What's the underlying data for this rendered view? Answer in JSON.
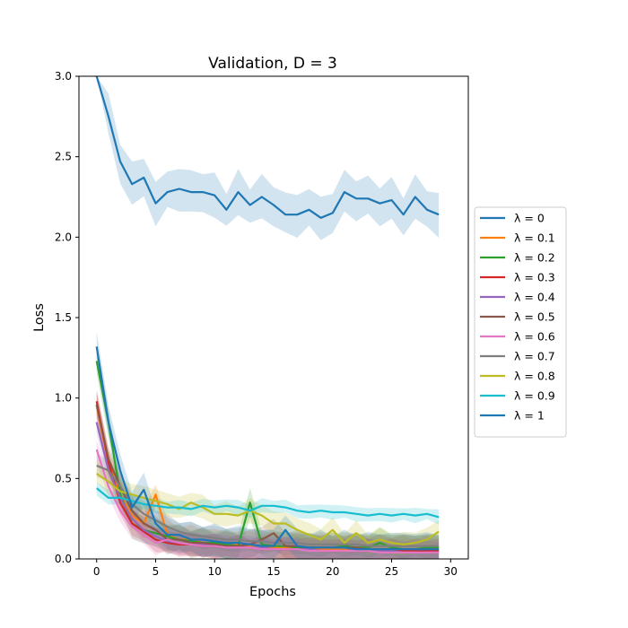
{
  "chart_data": {
    "type": "line",
    "title": "Validation, D = 3",
    "xlabel": "Epochs",
    "ylabel": "Loss",
    "xlim": [
      -1.5,
      31.5
    ],
    "ylim": [
      0,
      3.0
    ],
    "xticks": [
      0,
      5,
      10,
      15,
      20,
      25,
      30
    ],
    "yticks": [
      0.0,
      0.5,
      1.0,
      1.5,
      2.0,
      2.5,
      3.0
    ],
    "xtick_labels": [
      "0",
      "5",
      "10",
      "15",
      "20",
      "25",
      "30"
    ],
    "ytick_labels": [
      "0.0",
      "0.5",
      "1.0",
      "1.5",
      "2.0",
      "2.5",
      "3.0"
    ],
    "legend_position": "right, outside plot",
    "grid": false,
    "x": [
      0,
      1,
      2,
      3,
      4,
      5,
      6,
      7,
      8,
      9,
      10,
      11,
      12,
      13,
      14,
      15,
      16,
      17,
      18,
      19,
      20,
      21,
      22,
      23,
      24,
      25,
      26,
      27,
      28,
      29
    ],
    "series": [
      {
        "name": "λ = 0",
        "color": "#1f77b4",
        "values": [
          3.15,
          2.75,
          2.47,
          2.33,
          2.37,
          2.21,
          2.28,
          2.3,
          2.28,
          2.28,
          2.26,
          2.17,
          2.28,
          2.2,
          2.25,
          2.2,
          2.14,
          2.14,
          2.17,
          2.12,
          2.15,
          2.28,
          2.24,
          2.24,
          2.21,
          2.23,
          2.14,
          2.25,
          2.17,
          2.14
        ],
        "band": 0.09
      },
      {
        "name": "λ = 0.1",
        "color": "#ff7f0e",
        "values": [
          0.95,
          0.6,
          0.4,
          0.27,
          0.22,
          0.4,
          0.15,
          0.12,
          0.12,
          0.1,
          0.1,
          0.08,
          0.09,
          0.08,
          0.08,
          0.07,
          0.07,
          0.07,
          0.06,
          0.06,
          0.06,
          0.06,
          0.06,
          0.06,
          0.06,
          0.05,
          0.05,
          0.05,
          0.05,
          0.05
        ],
        "band": 0.06
      },
      {
        "name": "λ = 0.2",
        "color": "#2ca02c",
        "values": [
          1.23,
          0.85,
          0.4,
          0.22,
          0.18,
          0.16,
          0.14,
          0.12,
          0.11,
          0.1,
          0.1,
          0.09,
          0.08,
          0.35,
          0.09,
          0.08,
          0.08,
          0.07,
          0.07,
          0.07,
          0.07,
          0.08,
          0.07,
          0.07,
          0.1,
          0.07,
          0.06,
          0.06,
          0.07,
          0.07
        ],
        "band": 0.06
      },
      {
        "name": "λ = 0.3",
        "color": "#d62728",
        "values": [
          0.98,
          0.6,
          0.35,
          0.22,
          0.17,
          0.12,
          0.1,
          0.09,
          0.09,
          0.08,
          0.08,
          0.07,
          0.07,
          0.07,
          0.06,
          0.06,
          0.06,
          0.06,
          0.06,
          0.05,
          0.05,
          0.05,
          0.05,
          0.05,
          0.05,
          0.05,
          0.05,
          0.05,
          0.05,
          0.05
        ],
        "band": 0.05
      },
      {
        "name": "λ = 0.4",
        "color": "#9467bd",
        "values": [
          0.85,
          0.55,
          0.38,
          0.25,
          0.18,
          0.14,
          0.11,
          0.1,
          0.09,
          0.09,
          0.08,
          0.08,
          0.07,
          0.07,
          0.07,
          0.06,
          0.06,
          0.06,
          0.06,
          0.05,
          0.05,
          0.05,
          0.05,
          0.05,
          0.05,
          0.05,
          0.04,
          0.04,
          0.04,
          0.04
        ],
        "band": 0.05
      },
      {
        "name": "λ = 0.5",
        "color": "#8c564b",
        "values": [
          0.96,
          0.62,
          0.45,
          0.3,
          0.22,
          0.18,
          0.12,
          0.12,
          0.1,
          0.1,
          0.09,
          0.08,
          0.08,
          0.09,
          0.12,
          0.16,
          0.08,
          0.08,
          0.07,
          0.07,
          0.07,
          0.07,
          0.07,
          0.06,
          0.06,
          0.06,
          0.06,
          0.06,
          0.06,
          0.06
        ],
        "band": 0.06
      },
      {
        "name": "λ = 0.6",
        "color": "#e377c2",
        "values": [
          0.68,
          0.45,
          0.3,
          0.2,
          0.15,
          0.1,
          0.12,
          0.1,
          0.09,
          0.08,
          0.08,
          0.07,
          0.07,
          0.07,
          0.06,
          0.06,
          0.06,
          0.06,
          0.05,
          0.05,
          0.05,
          0.05,
          0.05,
          0.05,
          0.04,
          0.04,
          0.04,
          0.04,
          0.04,
          0.04
        ],
        "band": 0.05
      },
      {
        "name": "λ = 0.7",
        "color": "#7f7f7f",
        "values": [
          0.58,
          0.55,
          0.45,
          0.34,
          0.28,
          0.24,
          0.2,
          0.17,
          0.15,
          0.14,
          0.13,
          0.12,
          0.12,
          0.11,
          0.11,
          0.1,
          0.1,
          0.1,
          0.09,
          0.09,
          0.09,
          0.09,
          0.09,
          0.08,
          0.08,
          0.08,
          0.08,
          0.08,
          0.08,
          0.08
        ],
        "band": 0.05
      },
      {
        "name": "λ = 0.8",
        "color": "#bcbd22",
        "values": [
          0.53,
          0.48,
          0.42,
          0.4,
          0.38,
          0.36,
          0.34,
          0.31,
          0.35,
          0.32,
          0.28,
          0.28,
          0.27,
          0.3,
          0.27,
          0.22,
          0.22,
          0.18,
          0.15,
          0.12,
          0.18,
          0.1,
          0.16,
          0.1,
          0.12,
          0.1,
          0.09,
          0.1,
          0.12,
          0.17
        ],
        "band": 0.05
      },
      {
        "name": "λ = 0.9",
        "color": "#17becf",
        "values": [
          0.44,
          0.38,
          0.38,
          0.36,
          0.34,
          0.33,
          0.32,
          0.32,
          0.31,
          0.33,
          0.32,
          0.33,
          0.32,
          0.3,
          0.33,
          0.33,
          0.32,
          0.3,
          0.29,
          0.3,
          0.29,
          0.29,
          0.28,
          0.27,
          0.28,
          0.27,
          0.28,
          0.27,
          0.28,
          0.26
        ],
        "band": 0.03
      },
      {
        "name": "λ = 1",
        "color": "#1f77b4",
        "values": [
          1.32,
          0.85,
          0.55,
          0.32,
          0.43,
          0.22,
          0.15,
          0.15,
          0.12,
          0.12,
          0.11,
          0.1,
          0.1,
          0.09,
          0.08,
          0.08,
          0.18,
          0.08,
          0.07,
          0.07,
          0.07,
          0.07,
          0.06,
          0.06,
          0.06,
          0.06,
          0.06,
          0.06,
          0.06,
          0.06
        ],
        "band": 0.07
      }
    ]
  }
}
